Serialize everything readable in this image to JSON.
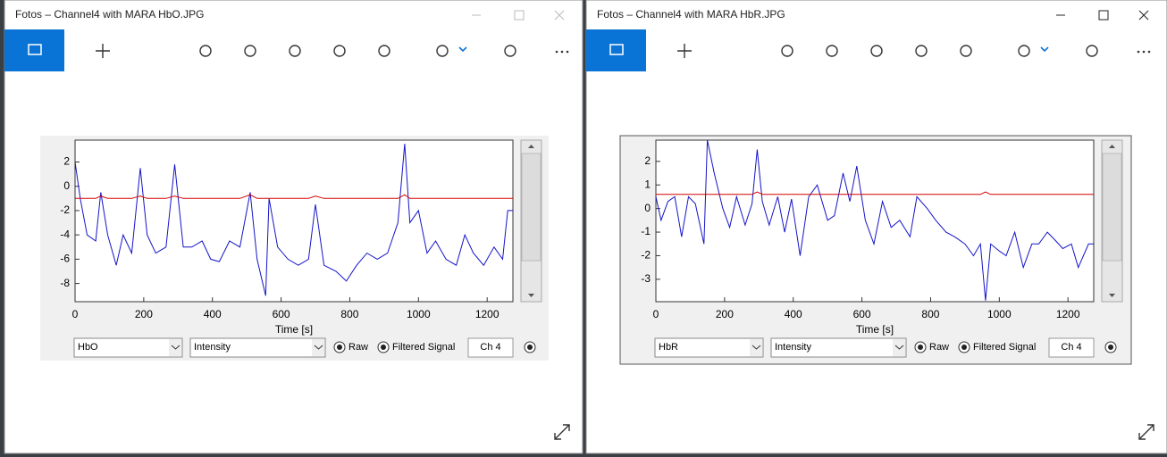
{
  "windows": [
    {
      "title": "Fotos – Channel4 with MARA HbO.JPG",
      "plot": {
        "type": "line",
        "xlabel": "Time [s]",
        "xlim": [
          0,
          1275
        ],
        "xticks": [
          0,
          200,
          400,
          600,
          800,
          1000,
          1200
        ],
        "ylim": [
          -9.5,
          3.8
        ],
        "yticks": [
          -8,
          -6,
          -4,
          -2,
          0,
          2
        ],
        "x": [
          0,
          15,
          35,
          60,
          75,
          95,
          120,
          140,
          165,
          190,
          210,
          235,
          265,
          290,
          315,
          340,
          370,
          395,
          420,
          450,
          480,
          510,
          530,
          555,
          565,
          590,
          620,
          650,
          680,
          700,
          725,
          760,
          790,
          820,
          850,
          880,
          910,
          940,
          960,
          975,
          1000,
          1025,
          1050,
          1080,
          1110,
          1135,
          1160,
          1190,
          1220,
          1245,
          1260,
          1275
        ],
        "series": [
          {
            "color": "#1414c8",
            "values": [
              2,
              -1,
              -4,
              -4.5,
              -0.5,
              -4,
              -6.5,
              -4,
              -5.5,
              1.5,
              -4,
              -5.5,
              -5,
              1.8,
              -5,
              -5,
              -4.5,
              -6,
              -6.2,
              -4.5,
              -5,
              -0.5,
              -6,
              -9,
              -1,
              -5,
              -6,
              -6.5,
              -6,
              -1.5,
              -6.5,
              -7,
              -7.8,
              -6.5,
              -5.5,
              -6,
              -5.5,
              -3,
              3.5,
              -3,
              -2,
              -5.5,
              -4.5,
              -6,
              -6.5,
              -4,
              -5.5,
              -6.5,
              -5,
              -6,
              -2,
              -2
            ]
          },
          {
            "color": "#d40000",
            "values": [
              -1,
              -1,
              -1,
              -1,
              -0.8,
              -1,
              -1,
              -1,
              -1,
              -0.8,
              -1,
              -1,
              -1,
              -0.8,
              -1,
              -1,
              -1,
              -1,
              -1,
              -1,
              -1,
              -0.7,
              -1,
              -1,
              -1,
              -1,
              -1,
              -1,
              -1,
              -0.8,
              -1,
              -1,
              -1,
              -1,
              -1,
              -1,
              -1,
              -1,
              -0.7,
              -1,
              -1,
              -1,
              -1,
              -1,
              -1,
              -1,
              -1,
              -1,
              -1,
              -1,
              -1,
              -1
            ]
          }
        ]
      },
      "controls": {
        "signal": "HbO",
        "mode": "Intensity",
        "raw": "Raw",
        "filtered": "Filtered Signal",
        "channel": "Ch 4"
      }
    },
    {
      "title": "Fotos – Channel4 with MARA HbR.JPG",
      "plot": {
        "type": "line",
        "xlabel": "Time [s]",
        "xlim": [
          0,
          1275
        ],
        "xticks": [
          0,
          200,
          400,
          600,
          800,
          1000,
          1200
        ],
        "ylim": [
          -3.95,
          2.9
        ],
        "yticks": [
          -3,
          -2,
          -1,
          0,
          1,
          2
        ],
        "x": [
          0,
          15,
          35,
          55,
          75,
          95,
          115,
          140,
          150,
          170,
          195,
          215,
          235,
          260,
          280,
          295,
          310,
          330,
          355,
          375,
          395,
          420,
          445,
          470,
          500,
          520,
          545,
          565,
          585,
          610,
          635,
          660,
          685,
          710,
          740,
          760,
          790,
          815,
          845,
          870,
          900,
          925,
          945,
          960,
          975,
          1000,
          1020,
          1045,
          1070,
          1095,
          1115,
          1140,
          1160,
          1185,
          1210,
          1230,
          1260,
          1275
        ],
        "series": [
          {
            "color": "#1414c8",
            "values": [
              0.5,
              -0.5,
              0.3,
              0.5,
              -1.2,
              0.5,
              0.2,
              -1.5,
              2.9,
              1.5,
              0,
              -0.8,
              0.5,
              -0.7,
              0.2,
              2.5,
              0.3,
              -0.7,
              0.5,
              -1,
              0.4,
              -2,
              0.5,
              1,
              -0.5,
              -0.3,
              1.5,
              0.3,
              1.8,
              -0.5,
              -1.5,
              0.3,
              -0.8,
              -0.5,
              -1.2,
              0.5,
              0,
              -0.5,
              -1,
              -1.2,
              -1.5,
              -2,
              -1.5,
              -3.9,
              -1.5,
              -1.8,
              -2,
              -1,
              -2.5,
              -1.5,
              -1.5,
              -1,
              -1.3,
              -1.7,
              -1.5,
              -2.5,
              -1.5,
              -1.5
            ]
          },
          {
            "color": "#d40000",
            "values": [
              0.6,
              0.6,
              0.6,
              0.6,
              0.6,
              0.6,
              0.6,
              0.6,
              0.6,
              0.6,
              0.6,
              0.6,
              0.6,
              0.6,
              0.6,
              0.7,
              0.6,
              0.6,
              0.6,
              0.6,
              0.6,
              0.6,
              0.6,
              0.6,
              0.6,
              0.6,
              0.6,
              0.6,
              0.6,
              0.6,
              0.6,
              0.6,
              0.6,
              0.6,
              0.6,
              0.6,
              0.6,
              0.6,
              0.6,
              0.6,
              0.6,
              0.6,
              0.6,
              0.7,
              0.6,
              0.6,
              0.6,
              0.6,
              0.6,
              0.6,
              0.6,
              0.6,
              0.6,
              0.6,
              0.6,
              0.6,
              0.6,
              0.6
            ]
          }
        ]
      },
      "controls": {
        "signal": "HbR",
        "mode": "Intensity",
        "raw": "Raw",
        "filtered": "Filtered Signal",
        "channel": "Ch 4"
      }
    }
  ]
}
